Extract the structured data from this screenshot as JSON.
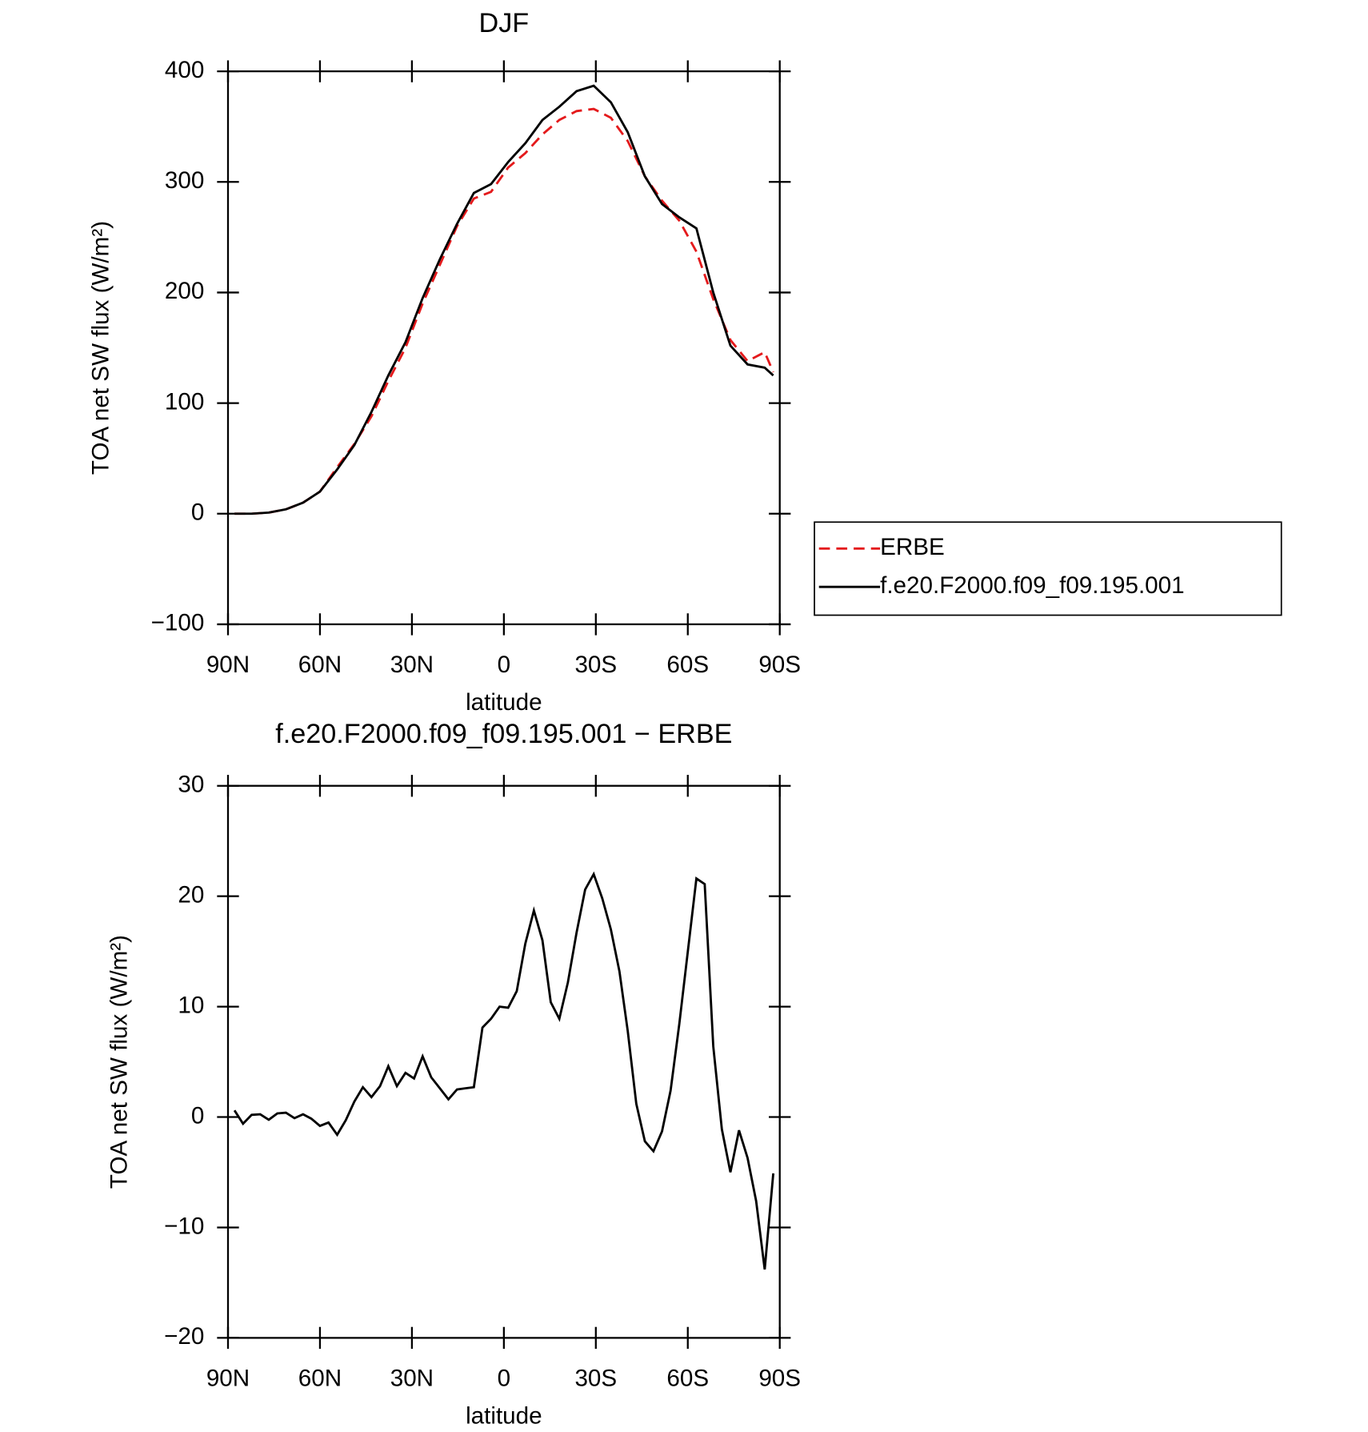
{
  "chart_data": [
    {
      "type": "line",
      "title": "DJF",
      "x_label": "latitude",
      "y_label": "TOA net SW flux (W/m²)",
      "x": [
        87.9,
        82.3,
        76.7,
        71.1,
        65.5,
        60.0,
        54.4,
        48.8,
        43.2,
        37.7,
        32.1,
        26.5,
        20.9,
        15.3,
        9.8,
        4.2,
        -1.4,
        -7.0,
        -12.6,
        -18.1,
        -23.7,
        -29.3,
        -34.9,
        -40.4,
        -46.0,
        -51.6,
        -57.2,
        -62.8,
        -68.3,
        -73.9,
        -79.5,
        -85.1,
        -87.9
      ],
      "series": [
        {
          "name": "ERBE",
          "color": "#e41a1c",
          "style": "dashed",
          "values": [
            0,
            0,
            1,
            4,
            10,
            20,
            42,
            63,
            88,
            120,
            150,
            190,
            225,
            260,
            285,
            291,
            313,
            326,
            343,
            356,
            364,
            366,
            358,
            337,
            305,
            283,
            265,
            237,
            194,
            157,
            138,
            146,
            128
          ]
        },
        {
          "name": "f.e20.F2000.f09_f09.195.001",
          "color": "#000000",
          "style": "solid",
          "values": [
            0,
            0,
            1,
            4,
            10,
            20,
            40,
            62,
            92,
            125,
            155,
            195,
            230,
            262,
            290,
            298,
            318,
            335,
            356,
            368,
            382,
            387,
            372,
            345,
            305,
            280,
            268,
            258,
            200,
            152,
            135,
            132,
            125
          ]
        }
      ],
      "xlim": [
        90,
        -90
      ],
      "xticks": [
        {
          "value": 90,
          "label": "90N"
        },
        {
          "value": 60,
          "label": "60N"
        },
        {
          "value": 30,
          "label": "30N"
        },
        0,
        {
          "value": -30,
          "label": "30S"
        },
        {
          "value": -60,
          "label": "60S"
        },
        {
          "value": -90,
          "label": "90S"
        }
      ],
      "ylim": [
        -100,
        400
      ],
      "yticks": [
        {
          "value": -100,
          "label": "−100"
        },
        0,
        100,
        200,
        300,
        400
      ],
      "legend": "outside-right"
    },
    {
      "type": "line",
      "title": "f.e20.F2000.f09_f09.195.001 − ERBE",
      "x_label": "latitude",
      "y_label": "TOA net SW flux (W/m²)",
      "x": [
        87.9,
        85.1,
        82.3,
        79.5,
        76.7,
        73.9,
        71.1,
        68.3,
        65.5,
        62.8,
        60.0,
        57.2,
        54.4,
        51.6,
        48.8,
        46.0,
        43.2,
        40.4,
        37.7,
        34.9,
        32.1,
        29.3,
        26.5,
        23.7,
        20.9,
        18.1,
        15.3,
        12.6,
        9.8,
        7.0,
        4.2,
        1.4,
        -1.4,
        -4.2,
        -7.0,
        -9.8,
        -12.6,
        -15.3,
        -18.1,
        -20.9,
        -23.7,
        -26.5,
        -29.3,
        -32.1,
        -34.9,
        -37.7,
        -40.4,
        -43.2,
        -46.0,
        -48.8,
        -51.6,
        -54.4,
        -57.2,
        -60.0,
        -62.8,
        -65.5,
        -68.3,
        -71.1,
        -73.9,
        -76.7,
        -79.5,
        -82.3,
        -85.1,
        -87.9
      ],
      "color": "#000000",
      "values": [
        0.6,
        -0.6,
        0.2,
        0.25,
        -0.25,
        0.33,
        0.4,
        -0.1,
        0.25,
        -0.15,
        -0.8,
        -0.5,
        -1.6,
        -0.3,
        1.4,
        2.7,
        1.8,
        2.8,
        4.6,
        2.8,
        4.0,
        3.5,
        5.5,
        3.6,
        2.6,
        1.6,
        2.5,
        2.6,
        2.7,
        8.1,
        8.9,
        10.0,
        9.9,
        11.4,
        15.7,
        18.7,
        16.0,
        10.4,
        8.9,
        12.2,
        16.7,
        20.6,
        22.0,
        19.8,
        17.0,
        13.2,
        7.8,
        1.2,
        -2.2,
        -3.1,
        -1.3,
        2.4,
        8.4,
        15.0,
        21.6,
        21.1,
        6.4,
        -1.1,
        -5.0,
        -1.2,
        -3.7,
        -7.6,
        -13.8,
        -5.1
      ],
      "xlim": [
        90,
        -90
      ],
      "xticks": [
        {
          "value": 90,
          "label": "90N"
        },
        {
          "value": 60,
          "label": "60N"
        },
        {
          "value": 30,
          "label": "30N"
        },
        0,
        {
          "value": -30,
          "label": "30S"
        },
        {
          "value": -60,
          "label": "60S"
        },
        {
          "value": -90,
          "label": "90S"
        }
      ],
      "ylim": [
        -20,
        30
      ],
      "yticks": [
        {
          "value": -20,
          "label": "−20"
        },
        {
          "value": -10,
          "label": "−10"
        },
        0,
        10,
        20,
        30
      ]
    }
  ]
}
